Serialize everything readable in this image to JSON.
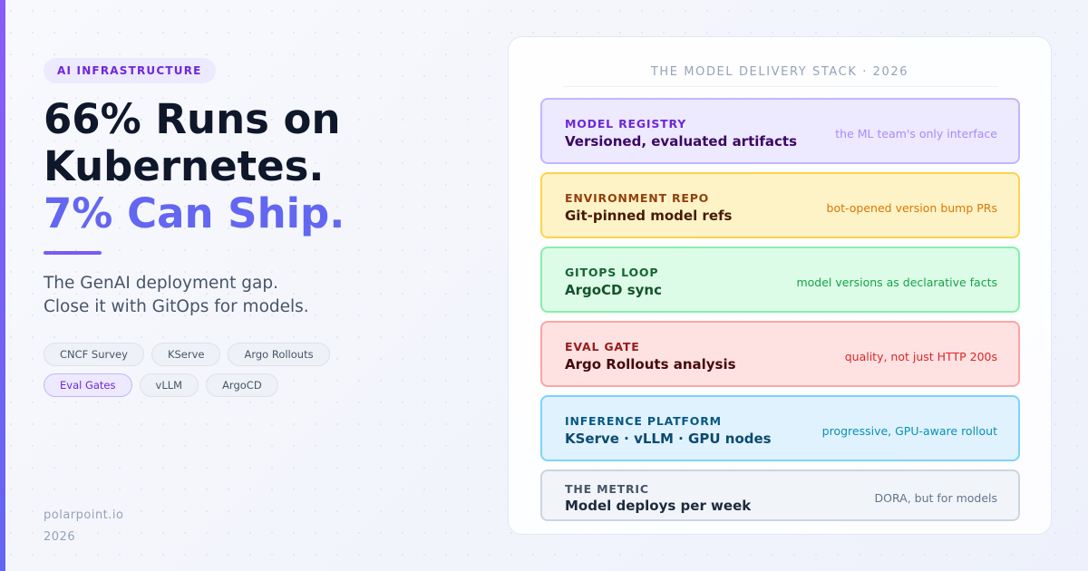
{
  "badge": "AI INFRASTRUCTURE",
  "headline": {
    "lines": [
      "66% Runs on",
      "Kubernetes."
    ],
    "accent": "7% Can Ship."
  },
  "subtitle": [
    "The GenAI deployment gap.",
    "Close it with GitOps for models."
  ],
  "tags": [
    {
      "label": "CNCF Survey",
      "highlighted": false
    },
    {
      "label": "KServe",
      "highlighted": false
    },
    {
      "label": "Argo Rollouts",
      "highlighted": false
    },
    {
      "label": "Eval Gates",
      "highlighted": true
    },
    {
      "label": "vLLM",
      "highlighted": false
    },
    {
      "label": "ArgoCD",
      "highlighted": false
    }
  ],
  "footer": {
    "site": "polarpoint.io",
    "year": "2026"
  },
  "panel": {
    "title": "THE MODEL DELIVERY STACK · 2026",
    "layers": [
      {
        "label": "MODEL REGISTRY",
        "title": "Versioned, evaluated artifacts",
        "note": "the ML team's only interface"
      },
      {
        "label": "ENVIRONMENT REPO",
        "title": "Git-pinned model refs",
        "note": "bot-opened version bump PRs"
      },
      {
        "label": "GITOPS LOOP",
        "title": "ArgoCD sync",
        "note": "model versions as declarative facts"
      },
      {
        "label": "EVAL GATE",
        "title": "Argo Rollouts analysis",
        "note": "quality, not just HTTP 200s"
      },
      {
        "label": "INFERENCE PLATFORM",
        "title": "KServe · vLLM · GPU nodes",
        "note": "progressive, GPU-aware rollout"
      },
      {
        "label": "THE METRIC",
        "title": "Model deploys per week",
        "note": "DORA, but for models"
      }
    ]
  }
}
